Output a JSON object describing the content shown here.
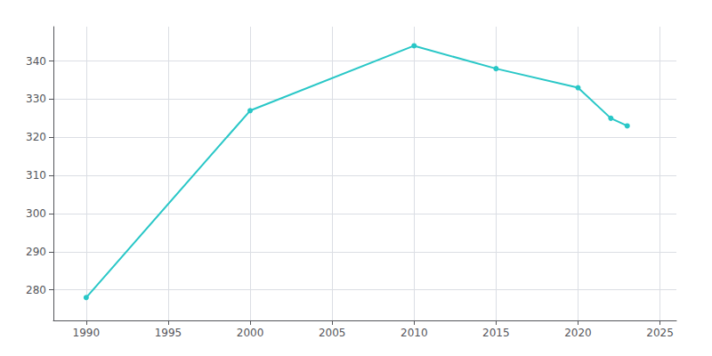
{
  "chart_data": {
    "type": "line",
    "x": [
      1990,
      2000,
      2010,
      2015,
      2020,
      2022,
      2023
    ],
    "values": [
      278,
      327,
      344,
      338,
      333,
      325,
      323
    ],
    "color": "#29c7c7",
    "marker": "circle",
    "xlim": [
      1988,
      2026
    ],
    "ylim": [
      272,
      349
    ],
    "xticks": [
      1990,
      1995,
      2000,
      2005,
      2010,
      2015,
      2020,
      2025
    ],
    "yticks": [
      280,
      290,
      300,
      310,
      320,
      330,
      340
    ],
    "grid": true
  }
}
